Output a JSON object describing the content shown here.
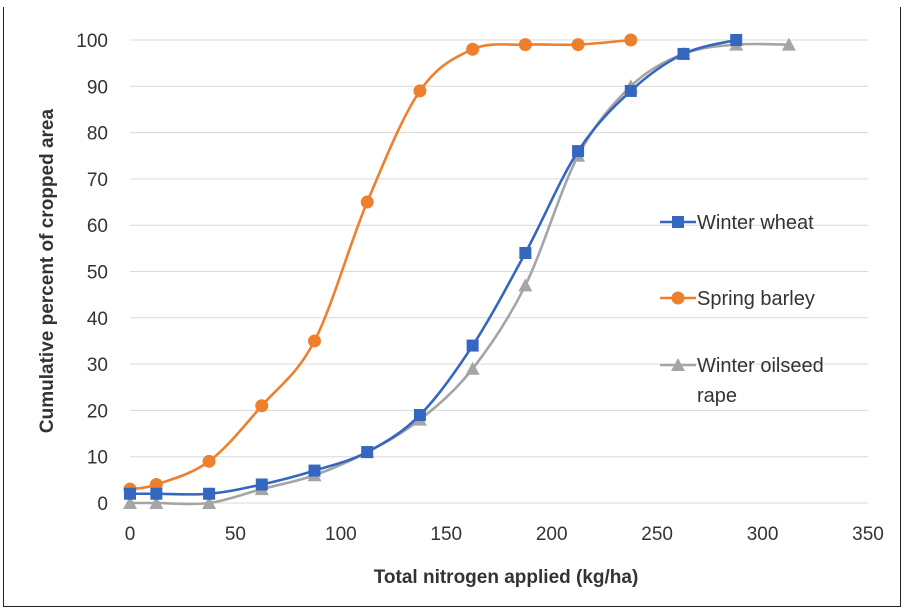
{
  "chart_data": {
    "type": "line",
    "xlabel": "Total nitrogen applied (kg/ha)",
    "ylabel": "Cumulative percent of cropped area",
    "xlim": [
      0,
      350
    ],
    "ylim": [
      0,
      100
    ],
    "x_ticks": [
      0,
      50,
      100,
      150,
      200,
      250,
      300,
      350
    ],
    "y_ticks": [
      0,
      10,
      20,
      30,
      40,
      50,
      60,
      70,
      80,
      90,
      100
    ],
    "grid": "horizontal",
    "legend_position": "right",
    "series": [
      {
        "name": "Winter wheat",
        "color": "#3566c0",
        "marker": "square",
        "x": [
          0,
          12.5,
          37.5,
          62.5,
          87.5,
          112.5,
          137.5,
          162.5,
          187.5,
          212.5,
          237.5,
          262.5,
          287.5
        ],
        "y": [
          2,
          2,
          2,
          4,
          7,
          11,
          19,
          34,
          54,
          76,
          89,
          97,
          100
        ]
      },
      {
        "name": "Spring barley",
        "color": "#ee7f2d",
        "marker": "circle",
        "x": [
          0,
          12.5,
          37.5,
          62.5,
          87.5,
          112.5,
          137.5,
          162.5,
          187.5,
          212.5,
          237.5
        ],
        "y": [
          3,
          4,
          9,
          21,
          35,
          65,
          89,
          98,
          99,
          99,
          100
        ]
      },
      {
        "name": "Winter oilseed rape",
        "color": "#a5a5a5",
        "marker": "triangle",
        "x": [
          0,
          12.5,
          37.5,
          62.5,
          87.5,
          112.5,
          137.5,
          162.5,
          187.5,
          212.5,
          237.5,
          262.5,
          287.5,
          312.5
        ],
        "y": [
          0,
          0,
          0,
          3,
          6,
          11,
          18,
          29,
          47,
          75,
          90,
          97,
          99,
          99
        ]
      }
    ]
  }
}
